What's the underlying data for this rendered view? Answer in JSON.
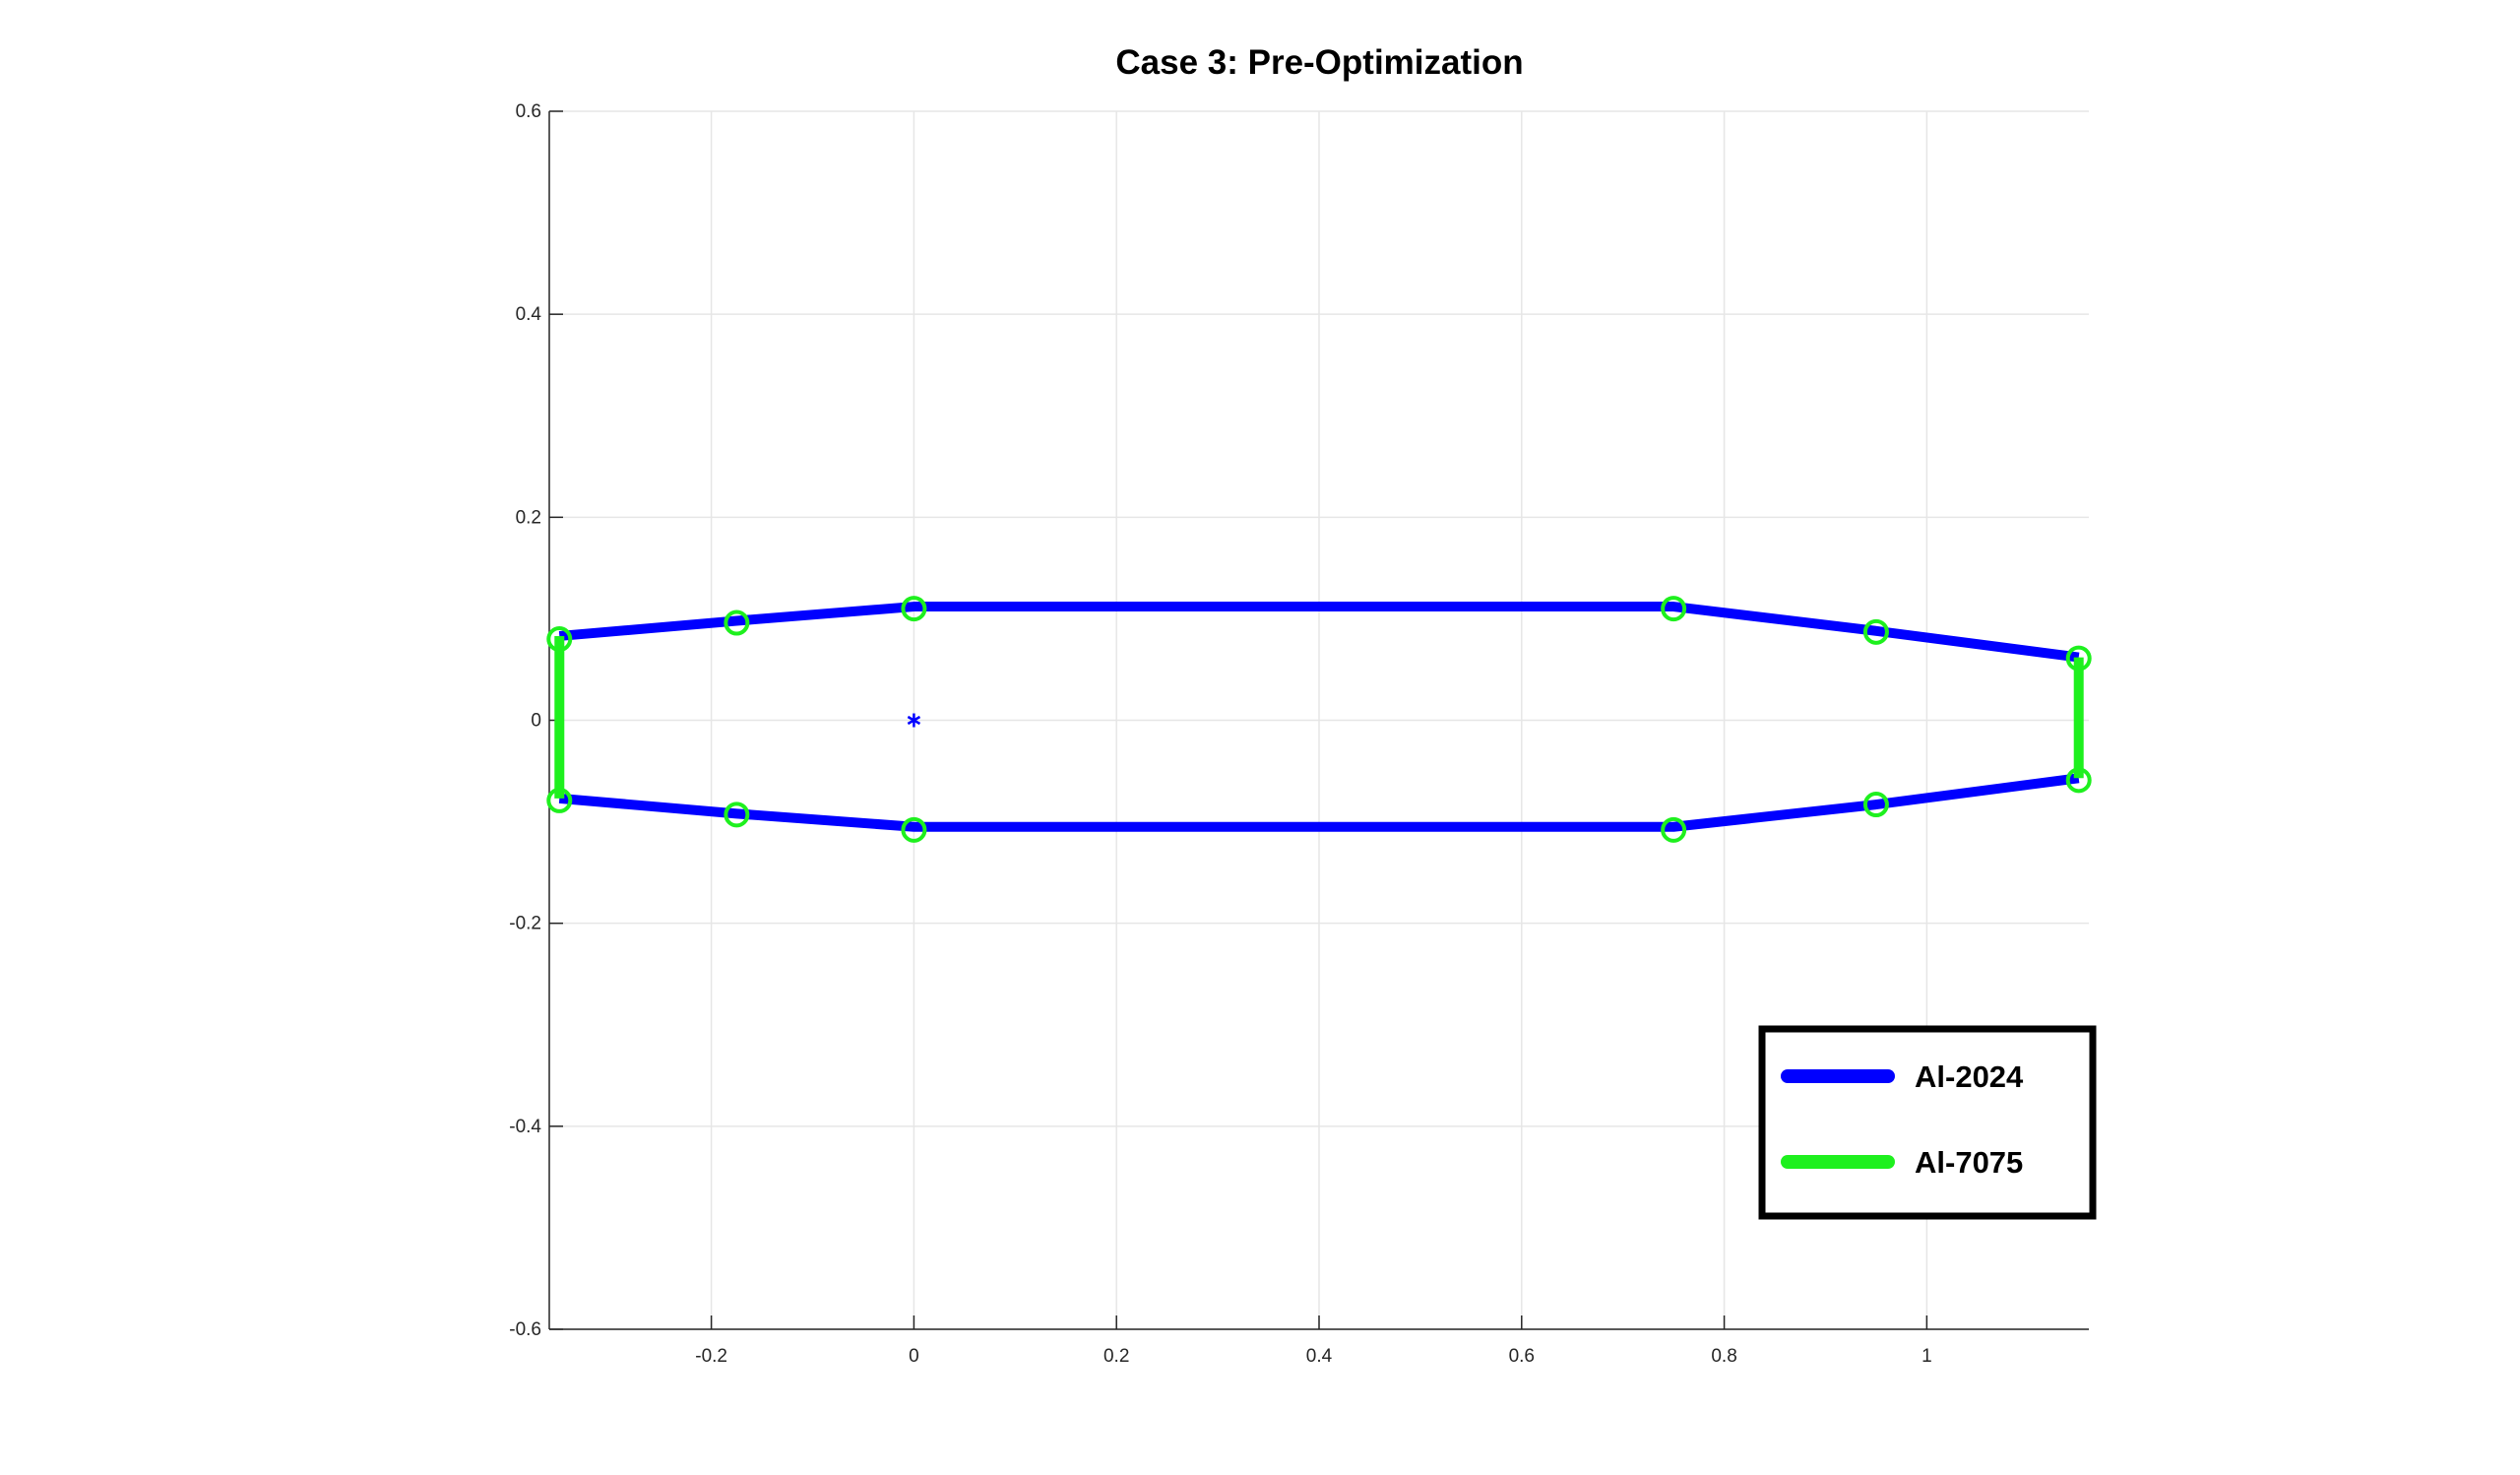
{
  "chart_data": {
    "type": "line",
    "title": "Case 3: Pre-Optimization",
    "xlabel": "",
    "ylabel": "",
    "xlim": [
      -0.36,
      1.16
    ],
    "ylim": [
      -0.6,
      0.6
    ],
    "xticks": [
      -0.2,
      0,
      0.2,
      0.4,
      0.6,
      0.8,
      1
    ],
    "xtick_labels": [
      "-0.2",
      "0",
      "0.2",
      "0.4",
      "0.6",
      "0.8",
      "1"
    ],
    "yticks": [
      -0.6,
      -0.4,
      -0.2,
      0,
      0.2,
      0.4,
      0.6
    ],
    "ytick_labels": [
      "-0.6",
      "-0.4",
      "-0.2",
      "0",
      "0.2",
      "0.4",
      "0.6"
    ],
    "grid": true,
    "legend_position": "bottom-right",
    "series": [
      {
        "name": "Al-2024",
        "color": "#0000ff",
        "segments": [
          [
            [
              -0.35,
              0.083
            ],
            [
              -0.175,
              0.098
            ],
            [
              0,
              0.112
            ],
            [
              0.75,
              0.112
            ],
            [
              0.95,
              0.088
            ],
            [
              1.15,
              0.062
            ]
          ],
          [
            [
              -0.35,
              -0.077
            ],
            [
              -0.175,
              -0.092
            ],
            [
              0,
              -0.105
            ],
            [
              0.75,
              -0.105
            ],
            [
              0.95,
              -0.083
            ],
            [
              1.15,
              -0.057
            ]
          ]
        ]
      },
      {
        "name": "Al-7075",
        "color": "#1ef01e",
        "segments": [
          [
            [
              -0.35,
              0.083
            ],
            [
              -0.35,
              -0.077
            ]
          ],
          [
            [
              1.15,
              0.062
            ],
            [
              1.15,
              -0.057
            ]
          ]
        ]
      }
    ],
    "markers": {
      "shape": "circle",
      "color": "#1ef01e",
      "points": [
        [
          -0.35,
          0.08
        ],
        [
          -0.175,
          0.096
        ],
        [
          0,
          0.11
        ],
        [
          0.75,
          0.11
        ],
        [
          0.95,
          0.087
        ],
        [
          1.15,
          0.061
        ],
        [
          -0.35,
          -0.079
        ],
        [
          -0.175,
          -0.093
        ],
        [
          0,
          -0.108
        ],
        [
          0.75,
          -0.108
        ],
        [
          0.95,
          -0.083
        ],
        [
          1.15,
          -0.059
        ]
      ]
    },
    "centroid": {
      "shape": "asterisk",
      "color": "#0000ff",
      "x": 0,
      "y": 0
    }
  }
}
